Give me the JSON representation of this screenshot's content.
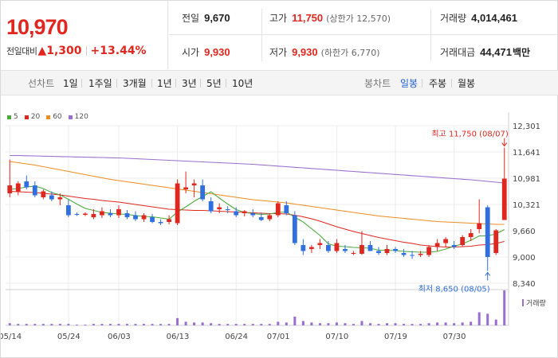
{
  "header": {
    "price": "10,970",
    "change_label": "전일대비",
    "change_amount": "▲1,300",
    "change_percent": "+13.44%",
    "stats": [
      {
        "label": "전일",
        "value": "9,670",
        "color": "normal",
        "sub": ""
      },
      {
        "label": "고가",
        "value": "11,750",
        "color": "red",
        "sub": "(상한가 12,570)"
      },
      {
        "label": "거래량",
        "value": "4,014,461",
        "color": "normal",
        "sub": ""
      },
      {
        "label": "시가",
        "value": "9,930",
        "color": "red",
        "sub": ""
      },
      {
        "label": "저가",
        "value": "9,930",
        "color": "red",
        "sub": "(하한가 6,770)"
      },
      {
        "label": "거래대금",
        "value": "44,471",
        "color": "normal",
        "sub": "백만"
      }
    ]
  },
  "toolbar": {
    "line_label": "선차트",
    "line_periods": [
      "1일",
      "1주일",
      "3개월",
      "1년",
      "3년",
      "5년",
      "10년"
    ],
    "candle_label": "봉차트",
    "candle_periods": [
      "일봉",
      "주봉",
      "월봉"
    ],
    "candle_active": "일봉"
  },
  "colors": {
    "up": "#e0271f",
    "down": "#2f6fe0",
    "ma5": "#4aaa3c",
    "ma20": "#e0271f",
    "ma60": "#f08c1e",
    "ma120": "#9a6ed0"
  },
  "chart_data": {
    "type": "candlestick",
    "y_ticks": [
      "12,301",
      "11,641",
      "10,981",
      "10,321",
      "9,660",
      "9,000",
      "8,340"
    ],
    "ylim": [
      8340,
      12301
    ],
    "x_ticks": [
      {
        "label": "05/14",
        "index": 0
      },
      {
        "label": "05/24",
        "index": 7
      },
      {
        "label": "06/03",
        "index": 13
      },
      {
        "label": "06/13",
        "index": 20
      },
      {
        "label": "06/24",
        "index": 27
      },
      {
        "label": "07/01",
        "index": 32
      },
      {
        "label": "07/10",
        "index": 39
      },
      {
        "label": "07/19",
        "index": 46
      },
      {
        "label": "07/30",
        "index": 53
      }
    ],
    "legend": [
      {
        "name": "5",
        "color": "#4aaa3c"
      },
      {
        "name": "20",
        "color": "#e0271f"
      },
      {
        "name": "60",
        "color": "#f08c1e"
      },
      {
        "name": "120",
        "color": "#9a6ed0"
      }
    ],
    "annotations": {
      "high": "최고 11,750 (08/07)",
      "low": "최저 8,650 (08/05)"
    },
    "volume_label": "거래량",
    "candles": [
      {
        "o": 10600,
        "h": 11450,
        "l": 10500,
        "c": 10800
      },
      {
        "o": 10650,
        "h": 10900,
        "l": 10550,
        "c": 10850
      },
      {
        "o": 10900,
        "h": 11050,
        "l": 10700,
        "c": 10750
      },
      {
        "o": 10800,
        "h": 10900,
        "l": 10500,
        "c": 10550
      },
      {
        "o": 10500,
        "h": 10700,
        "l": 10450,
        "c": 10650
      },
      {
        "o": 10550,
        "h": 10650,
        "l": 10400,
        "c": 10450
      },
      {
        "o": 10450,
        "h": 10600,
        "l": 10300,
        "c": 10500
      },
      {
        "o": 10300,
        "h": 10450,
        "l": 10000,
        "c": 10050
      },
      {
        "o": 10080,
        "h": 10120,
        "l": 10030,
        "c": 10060
      },
      {
        "o": 10060,
        "h": 10120,
        "l": 10030,
        "c": 10090
      },
      {
        "o": 10000,
        "h": 10200,
        "l": 9950,
        "c": 10080
      },
      {
        "o": 10050,
        "h": 10250,
        "l": 9980,
        "c": 10150
      },
      {
        "o": 10100,
        "h": 10200,
        "l": 10000,
        "c": 10050
      },
      {
        "o": 10050,
        "h": 10300,
        "l": 9980,
        "c": 10200
      },
      {
        "o": 10100,
        "h": 10180,
        "l": 9950,
        "c": 10000
      },
      {
        "o": 10050,
        "h": 10150,
        "l": 9900,
        "c": 9950
      },
      {
        "o": 9950,
        "h": 10100,
        "l": 9880,
        "c": 10050
      },
      {
        "o": 10000,
        "h": 10080,
        "l": 9850,
        "c": 9880
      },
      {
        "o": 9880,
        "h": 9950,
        "l": 9800,
        "c": 9850
      },
      {
        "o": 9880,
        "h": 10050,
        "l": 9820,
        "c": 9950
      },
      {
        "o": 9850,
        "h": 10950,
        "l": 9800,
        "c": 10850
      },
      {
        "o": 10700,
        "h": 11150,
        "l": 10600,
        "c": 10750
      },
      {
        "o": 10800,
        "h": 10950,
        "l": 10500,
        "c": 10850
      },
      {
        "o": 10800,
        "h": 10950,
        "l": 10400,
        "c": 10450
      },
      {
        "o": 10400,
        "h": 10500,
        "l": 10100,
        "c": 10150
      },
      {
        "o": 10200,
        "h": 10350,
        "l": 10100,
        "c": 10250
      },
      {
        "o": 10200,
        "h": 10280,
        "l": 10100,
        "c": 10180
      },
      {
        "o": 10150,
        "h": 10250,
        "l": 10000,
        "c": 10050
      },
      {
        "o": 10100,
        "h": 10180,
        "l": 10020,
        "c": 10150
      },
      {
        "o": 10100,
        "h": 10200,
        "l": 10000,
        "c": 10050
      },
      {
        "o": 10000,
        "h": 10120,
        "l": 9900,
        "c": 9930
      },
      {
        "o": 9950,
        "h": 10100,
        "l": 9900,
        "c": 10050
      },
      {
        "o": 10050,
        "h": 10400,
        "l": 10000,
        "c": 10350
      },
      {
        "o": 10300,
        "h": 10400,
        "l": 10050,
        "c": 10100
      },
      {
        "o": 10050,
        "h": 10150,
        "l": 9300,
        "c": 9350
      },
      {
        "o": 9300,
        "h": 9450,
        "l": 9050,
        "c": 9150
      },
      {
        "o": 9200,
        "h": 9300,
        "l": 9100,
        "c": 9250
      },
      {
        "o": 9300,
        "h": 9450,
        "l": 9200,
        "c": 9350
      },
      {
        "o": 9300,
        "h": 9400,
        "l": 9100,
        "c": 9150
      },
      {
        "o": 9150,
        "h": 9450,
        "l": 9100,
        "c": 9350
      },
      {
        "o": 9200,
        "h": 9300,
        "l": 9100,
        "c": 9150
      },
      {
        "o": 9100,
        "h": 9150,
        "l": 9050,
        "c": 9100
      },
      {
        "o": 9080,
        "h": 9650,
        "l": 9050,
        "c": 9300
      },
      {
        "o": 9300,
        "h": 9400,
        "l": 9150,
        "c": 9150
      },
      {
        "o": 9150,
        "h": 9250,
        "l": 9050,
        "c": 9100
      },
      {
        "o": 9100,
        "h": 9300,
        "l": 9050,
        "c": 9200
      },
      {
        "o": 9200,
        "h": 9250,
        "l": 9100,
        "c": 9150
      },
      {
        "o": 9100,
        "h": 9200,
        "l": 9000,
        "c": 9050
      },
      {
        "o": 9050,
        "h": 9150,
        "l": 8950,
        "c": 9030
      },
      {
        "o": 9050,
        "h": 9150,
        "l": 9000,
        "c": 9080
      },
      {
        "o": 9050,
        "h": 9300,
        "l": 9000,
        "c": 9250
      },
      {
        "o": 9250,
        "h": 9450,
        "l": 9150,
        "c": 9350
      },
      {
        "o": 9350,
        "h": 9500,
        "l": 9250,
        "c": 9450
      },
      {
        "o": 9300,
        "h": 9400,
        "l": 9200,
        "c": 9250
      },
      {
        "o": 9300,
        "h": 9550,
        "l": 9250,
        "c": 9500
      },
      {
        "o": 9500,
        "h": 9700,
        "l": 9400,
        "c": 9600
      },
      {
        "o": 9700,
        "h": 10450,
        "l": 9600,
        "c": 9850
      },
      {
        "o": 10250,
        "h": 10300,
        "l": 8650,
        "c": 9000
      },
      {
        "o": 9100,
        "h": 9700,
        "l": 9050,
        "c": 9670
      },
      {
        "o": 9930,
        "h": 11750,
        "l": 9930,
        "c": 10970
      }
    ],
    "ma5": [
      10700,
      10720,
      10760,
      10780,
      10720,
      10620,
      10560,
      10450,
      10330,
      10220,
      10170,
      10120,
      10100,
      10080,
      10070,
      10040,
      10020,
      10010,
      9980,
      9950,
      10130,
      10260,
      10400,
      10520,
      10640,
      10480,
      10330,
      10190,
      10120,
      10090,
      10070,
      10080,
      10120,
      10130,
      10000,
      9880,
      9710,
      9540,
      9330,
      9270,
      9260,
      9240,
      9230,
      9220,
      9170,
      9170,
      9160,
      9140,
      9130,
      9120,
      9120,
      9140,
      9200,
      9270,
      9330,
      9420,
      9530,
      9530,
      9580,
      9690
    ],
    "ma20": [
      10650,
      10640,
      10630,
      10620,
      10600,
      10580,
      10560,
      10530,
      10500,
      10470,
      10450,
      10420,
      10400,
      10380,
      10350,
      10320,
      10290,
      10260,
      10230,
      10200,
      10190,
      10180,
      10170,
      10170,
      10160,
      10150,
      10140,
      10130,
      10120,
      10110,
      10100,
      10090,
      10090,
      10080,
      10050,
      10010,
      9960,
      9900,
      9830,
      9760,
      9700,
      9640,
      9590,
      9540,
      9490,
      9450,
      9410,
      9370,
      9340,
      9300,
      9280,
      9260,
      9250,
      9250,
      9260,
      9270,
      9300,
      9310,
      9340,
      9390
    ],
    "ma60": [
      11400,
      11370,
      11340,
      11310,
      11270,
      11230,
      11190,
      11150,
      11110,
      11070,
      11030,
      10990,
      10950,
      10920,
      10890,
      10860,
      10830,
      10800,
      10770,
      10740,
      10710,
      10680,
      10650,
      10620,
      10590,
      10560,
      10530,
      10500,
      10470,
      10440,
      10420,
      10400,
      10380,
      10360,
      10330,
      10300,
      10270,
      10240,
      10210,
      10180,
      10150,
      10120,
      10090,
      10060,
      10030,
      10010,
      9990,
      9970,
      9950,
      9930,
      9910,
      9890,
      9880,
      9870,
      9860,
      9850,
      9840,
      9830,
      9820,
      9820
    ],
    "ma120": [
      11550,
      11550,
      11545,
      11540,
      11535,
      11530,
      11525,
      11520,
      11515,
      11510,
      11505,
      11500,
      11495,
      11490,
      11480,
      11470,
      11460,
      11450,
      11440,
      11430,
      11420,
      11410,
      11400,
      11390,
      11380,
      11370,
      11360,
      11350,
      11340,
      11330,
      11315,
      11300,
      11285,
      11270,
      11255,
      11240,
      11225,
      11210,
      11195,
      11180,
      11165,
      11150,
      11135,
      11120,
      11105,
      11090,
      11075,
      11060,
      11045,
      11030,
      11015,
      11000,
      10985,
      10970,
      10955,
      10940,
      10920,
      10900,
      10880,
      10860
    ],
    "volume": [
      3,
      2,
      2,
      2,
      2,
      2,
      2,
      2,
      1,
      1,
      2,
      2,
      2,
      2,
      2,
      2,
      2,
      2,
      2,
      2,
      10,
      5,
      4,
      4,
      3,
      2,
      2,
      2,
      2,
      2,
      2,
      2,
      5,
      4,
      12,
      6,
      4,
      3,
      3,
      4,
      3,
      2,
      6,
      3,
      2,
      3,
      3,
      2,
      2,
      2,
      3,
      4,
      4,
      3,
      4,
      5,
      18,
      16,
      8,
      48
    ]
  }
}
